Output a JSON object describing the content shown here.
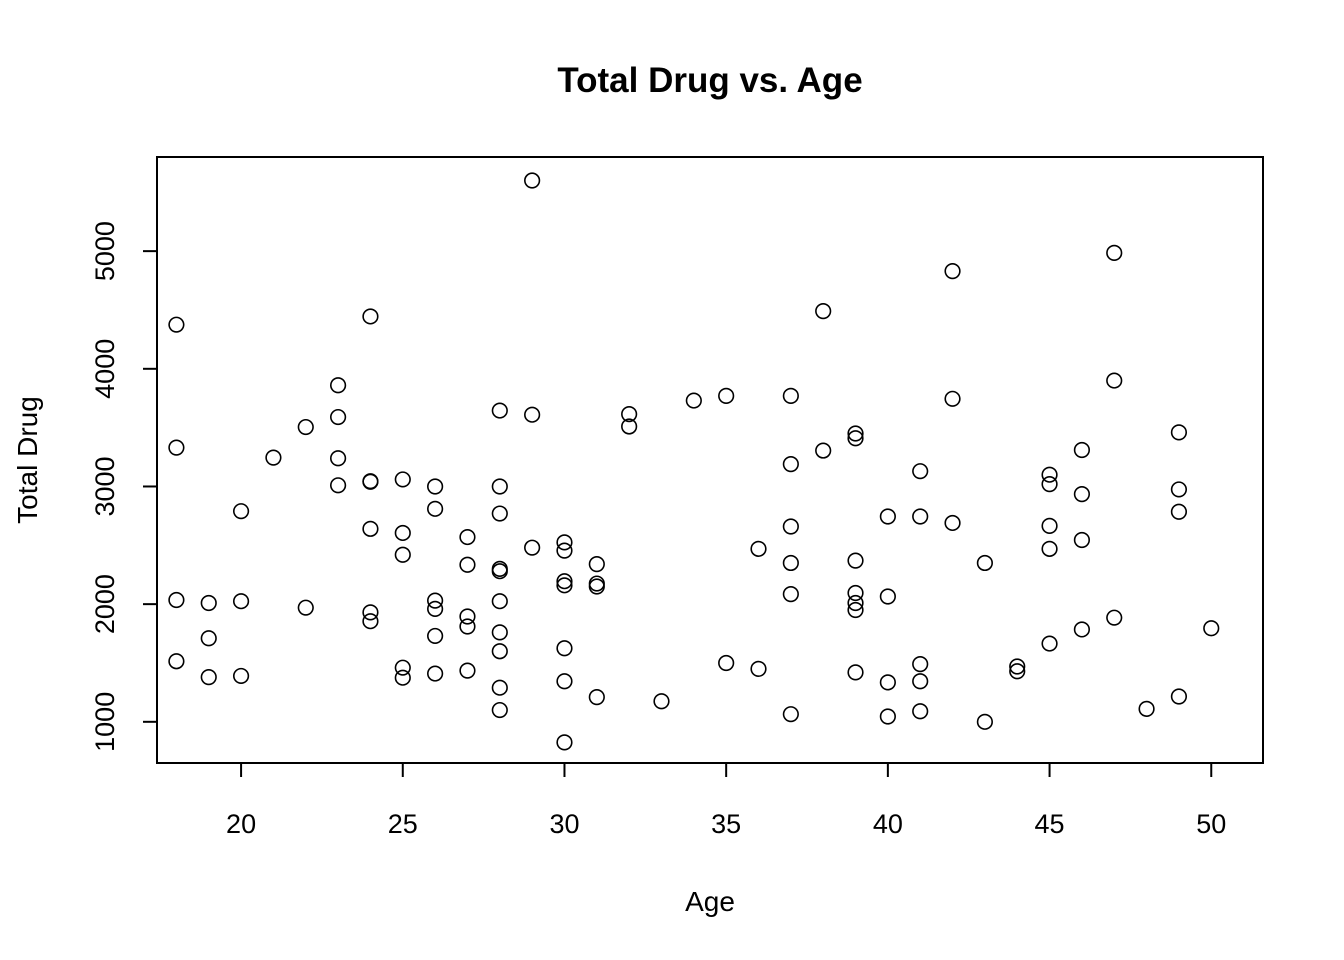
{
  "chart_data": {
    "type": "scatter",
    "title": "Total Drug vs. Age",
    "xlabel": "Age",
    "ylabel": "Total Drug",
    "xlim": [
      17.4,
      51.6
    ],
    "ylim": [
      650,
      5800
    ],
    "xticks": [
      20,
      25,
      30,
      35,
      40,
      45,
      50
    ],
    "yticks": [
      1000,
      2000,
      3000,
      4000,
      5000
    ],
    "grid": false,
    "legend": "none",
    "points": [
      [
        18,
        4375
      ],
      [
        18,
        3330
      ],
      [
        18,
        2035
      ],
      [
        18,
        1515
      ],
      [
        19,
        2010
      ],
      [
        19,
        1710
      ],
      [
        19,
        1380
      ],
      [
        20,
        2790
      ],
      [
        20,
        2025
      ],
      [
        20,
        1390
      ],
      [
        21,
        3245
      ],
      [
        22,
        3505
      ],
      [
        22,
        1970
      ],
      [
        23,
        3860
      ],
      [
        23,
        3590
      ],
      [
        23,
        3240
      ],
      [
        23,
        3010
      ],
      [
        24,
        4445
      ],
      [
        24,
        3045
      ],
      [
        24,
        3040
      ],
      [
        24,
        2640
      ],
      [
        24,
        1930
      ],
      [
        24,
        1855
      ],
      [
        25,
        3060
      ],
      [
        25,
        2605
      ],
      [
        25,
        2420
      ],
      [
        25,
        1460
      ],
      [
        25,
        1375
      ],
      [
        26,
        3000
      ],
      [
        26,
        2810
      ],
      [
        26,
        2030
      ],
      [
        26,
        1960
      ],
      [
        26,
        1730
      ],
      [
        26,
        1410
      ],
      [
        27,
        2570
      ],
      [
        27,
        2335
      ],
      [
        27,
        1895
      ],
      [
        27,
        1810
      ],
      [
        27,
        1435
      ],
      [
        28,
        3645
      ],
      [
        28,
        3000
      ],
      [
        28,
        2770
      ],
      [
        28,
        2300
      ],
      [
        28,
        2280
      ],
      [
        28,
        2025
      ],
      [
        28,
        1760
      ],
      [
        28,
        1600
      ],
      [
        28,
        1290
      ],
      [
        28,
        1100
      ],
      [
        29,
        5600
      ],
      [
        29,
        3610
      ],
      [
        29,
        2480
      ],
      [
        30,
        2525
      ],
      [
        30,
        2455
      ],
      [
        30,
        2195
      ],
      [
        30,
        2160
      ],
      [
        30,
        1625
      ],
      [
        30,
        1345
      ],
      [
        30,
        825
      ],
      [
        31,
        2340
      ],
      [
        31,
        2175
      ],
      [
        31,
        2150
      ],
      [
        31,
        1210
      ],
      [
        32,
        3615
      ],
      [
        32,
        3510
      ],
      [
        33,
        1175
      ],
      [
        34,
        3730
      ],
      [
        35,
        3770
      ],
      [
        35,
        1500
      ],
      [
        36,
        2470
      ],
      [
        36,
        1450
      ],
      [
        37,
        3770
      ],
      [
        37,
        3190
      ],
      [
        37,
        2660
      ],
      [
        37,
        2350
      ],
      [
        37,
        2085
      ],
      [
        37,
        1065
      ],
      [
        38,
        4490
      ],
      [
        38,
        3305
      ],
      [
        39,
        3450
      ],
      [
        39,
        3410
      ],
      [
        39,
        2370
      ],
      [
        39,
        2095
      ],
      [
        39,
        2010
      ],
      [
        39,
        1950
      ],
      [
        39,
        1420
      ],
      [
        40,
        2745
      ],
      [
        40,
        2065
      ],
      [
        40,
        1335
      ],
      [
        40,
        1045
      ],
      [
        41,
        3130
      ],
      [
        41,
        2745
      ],
      [
        41,
        1490
      ],
      [
        41,
        1345
      ],
      [
        41,
        1090
      ],
      [
        42,
        4830
      ],
      [
        42,
        3745
      ],
      [
        42,
        2690
      ],
      [
        43,
        2350
      ],
      [
        43,
        1000
      ],
      [
        44,
        1470
      ],
      [
        44,
        1430
      ],
      [
        45,
        3100
      ],
      [
        45,
        3020
      ],
      [
        45,
        2665
      ],
      [
        45,
        2470
      ],
      [
        45,
        1665
      ],
      [
        46,
        3310
      ],
      [
        46,
        2935
      ],
      [
        46,
        2545
      ],
      [
        46,
        1785
      ],
      [
        47,
        4985
      ],
      [
        47,
        3900
      ],
      [
        47,
        1885
      ],
      [
        48,
        1110
      ],
      [
        49,
        3460
      ],
      [
        49,
        2975
      ],
      [
        49,
        2785
      ],
      [
        49,
        1215
      ],
      [
        50,
        1795
      ]
    ]
  }
}
